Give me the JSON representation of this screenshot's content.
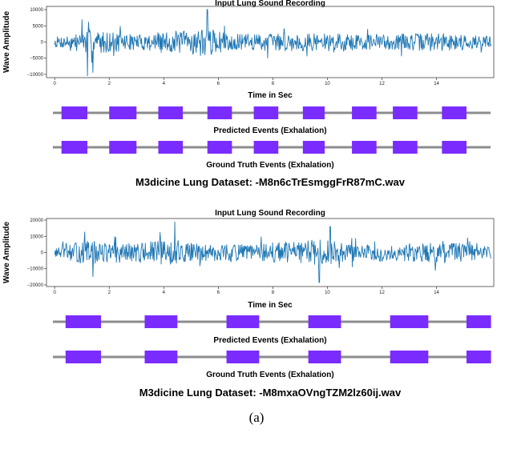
{
  "caption": "(a)",
  "chart_data": [
    {
      "type": "line",
      "title": "Input Lung Sound Recording",
      "xlabel": "Time in Sec",
      "ylabel": "Wave Amplitude",
      "xlim": [
        -0.3,
        16.1
      ],
      "ylim": [
        -11000,
        11000
      ],
      "xticks": [
        0,
        2,
        4,
        6,
        8,
        10,
        12,
        14
      ],
      "yticks": [
        -10000,
        -5000,
        0,
        5000,
        10000
      ],
      "xtick_labels": [
        "0",
        "2",
        "4",
        "6",
        "8",
        "10",
        "12",
        "14"
      ],
      "ytick_labels": [
        "−10000",
        "−5000",
        "0",
        "5000",
        "10000"
      ],
      "color": "#1f77b4",
      "waveform": {
        "seed": 7,
        "duration": 16,
        "samples": 800,
        "base_amplitude": 2400,
        "envelope": [
          [
            0,
            0.7
          ],
          [
            1,
            1.2
          ],
          [
            1.2,
            1.6
          ],
          [
            3,
            1.0
          ],
          [
            5.6,
            1.8
          ],
          [
            6.5,
            1.0
          ],
          [
            8,
            1.2
          ],
          [
            10,
            1.1
          ],
          [
            12,
            1.0
          ],
          [
            14,
            1.2
          ],
          [
            16,
            0.8
          ]
        ],
        "peaks": [
          [
            1.2,
            -10500
          ],
          [
            5.6,
            10000
          ],
          [
            1.0,
            7000
          ],
          [
            1.4,
            -9500
          ]
        ]
      },
      "event_label_x": 0,
      "tracks": [
        {
          "name": "Predicted Events (Exhalation)",
          "color": "#7a2cff",
          "intervals": [
            [
              0.25,
              1.2
            ],
            [
              2.0,
              3.0
            ],
            [
              3.8,
              4.7
            ],
            [
              5.6,
              6.5
            ],
            [
              7.3,
              8.2
            ],
            [
              9.1,
              9.9
            ],
            [
              10.9,
              11.8
            ],
            [
              12.4,
              13.3
            ],
            [
              14.2,
              15.1
            ]
          ]
        },
        {
          "name": "Ground Truth Events (Exhalation)",
          "color": "#7a2cff",
          "intervals": [
            [
              0.25,
              1.2
            ],
            [
              2.0,
              3.0
            ],
            [
              3.8,
              4.7
            ],
            [
              5.6,
              6.5
            ],
            [
              7.3,
              8.2
            ],
            [
              9.1,
              9.9
            ],
            [
              10.9,
              11.8
            ],
            [
              12.4,
              13.3
            ],
            [
              14.2,
              15.1
            ]
          ]
        }
      ],
      "dataset_caption": "M3dicine Lung Dataset: -M8n6cTrEsmggFrR87mC.wav"
    },
    {
      "type": "line",
      "title": "Input Lung Sound Recording",
      "xlabel": "Time in Sec",
      "ylabel": "Wave Amplitude",
      "xlim": [
        -0.3,
        16.1
      ],
      "ylim": [
        -21000,
        21000
      ],
      "xticks": [
        0,
        2,
        4,
        6,
        8,
        10,
        12,
        14
      ],
      "yticks": [
        -20000,
        -10000,
        0,
        10000,
        20000
      ],
      "xtick_labels": [
        "0",
        "2",
        "4",
        "6",
        "8",
        "10",
        "12",
        "14"
      ],
      "ytick_labels": [
        "−20000",
        "−10000",
        "0",
        "10000",
        "20000"
      ],
      "color": "#1f77b4",
      "waveform": {
        "seed": 13,
        "duration": 16,
        "samples": 800,
        "base_amplitude": 5200,
        "envelope": [
          [
            0,
            0.5
          ],
          [
            1.2,
            1.5
          ],
          [
            2.5,
            1.0
          ],
          [
            4.2,
            1.6
          ],
          [
            5.5,
            1.0
          ],
          [
            7,
            1.0
          ],
          [
            8.5,
            1.3
          ],
          [
            9.7,
            1.6
          ],
          [
            11,
            1.0
          ],
          [
            13,
            1.1
          ],
          [
            14.5,
            1.3
          ],
          [
            16,
            0.7
          ]
        ],
        "peaks": [
          [
            4.4,
            19000
          ],
          [
            9.7,
            -18500
          ],
          [
            1.4,
            -15000
          ],
          [
            10.1,
            16000
          ]
        ]
      },
      "event_label_x": 0,
      "tracks": [
        {
          "name": "Predicted Events (Exhalation)",
          "color": "#7a2cff",
          "intervals": [
            [
              0.4,
              1.7
            ],
            [
              3.3,
              4.5
            ],
            [
              6.3,
              7.5
            ],
            [
              9.3,
              10.5
            ],
            [
              12.3,
              13.7
            ],
            [
              15.1,
              16.0
            ]
          ]
        },
        {
          "name": "Ground Truth Events (Exhalation)",
          "color": "#7a2cff",
          "intervals": [
            [
              0.4,
              1.7
            ],
            [
              3.3,
              4.5
            ],
            [
              6.3,
              7.5
            ],
            [
              9.3,
              10.5
            ],
            [
              12.3,
              13.7
            ],
            [
              15.1,
              16.0
            ]
          ]
        }
      ],
      "dataset_caption": "M3dicine Lung Dataset: -M8mxaOVngTZM2lz60ij.wav"
    }
  ]
}
